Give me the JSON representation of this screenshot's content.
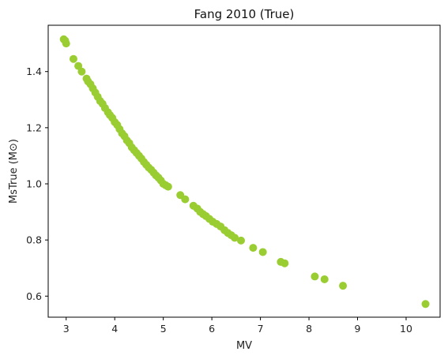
{
  "chart_data": {
    "type": "scatter",
    "title": "Fang 2010 (True)",
    "xlabel": "MV",
    "ylabel": "MsTrue (M⊙)",
    "xlim": [
      2.63,
      10.7
    ],
    "ylim": [
      0.525,
      1.565
    ],
    "xticks": [
      3,
      4,
      5,
      6,
      7,
      8,
      9,
      10
    ],
    "yticks": [
      0.6,
      0.8,
      1.0,
      1.2,
      1.4
    ],
    "ytick_labels": [
      "0.6",
      "0.8",
      "1.0",
      "1.2",
      "1.4"
    ],
    "grid": false,
    "marker_color": "#9acd32",
    "series": [
      {
        "x": [
          2.95,
          2.98,
          3.0,
          3.15,
          3.25,
          3.32,
          3.42,
          3.45,
          3.5,
          3.55,
          3.6,
          3.65,
          3.7,
          3.75,
          3.8,
          3.86,
          3.9,
          3.95,
          4.0,
          4.05,
          4.1,
          4.15,
          4.2,
          4.25,
          4.3,
          4.35,
          4.4,
          4.45,
          4.5,
          4.55,
          4.6,
          4.65,
          4.7,
          4.75,
          4.8,
          4.85,
          4.9,
          4.95,
          5.0,
          5.05,
          5.1,
          5.35,
          5.45,
          5.62,
          5.7,
          5.76,
          5.82,
          5.88,
          5.95,
          6.02,
          6.1,
          6.18,
          6.26,
          6.33,
          6.4,
          6.47,
          6.6,
          6.85,
          7.05,
          7.42,
          7.5,
          8.12,
          8.32,
          8.7,
          10.4
        ],
        "y": [
          1.515,
          1.51,
          1.5,
          1.445,
          1.42,
          1.4,
          1.375,
          1.365,
          1.355,
          1.34,
          1.325,
          1.31,
          1.295,
          1.285,
          1.27,
          1.255,
          1.245,
          1.235,
          1.22,
          1.21,
          1.195,
          1.18,
          1.17,
          1.155,
          1.145,
          1.13,
          1.12,
          1.11,
          1.1,
          1.09,
          1.078,
          1.068,
          1.058,
          1.05,
          1.04,
          1.03,
          1.022,
          1.012,
          1.0,
          0.995,
          0.99,
          0.96,
          0.945,
          0.922,
          0.912,
          0.9,
          0.892,
          0.885,
          0.875,
          0.865,
          0.857,
          0.848,
          0.835,
          0.825,
          0.817,
          0.808,
          0.798,
          0.772,
          0.757,
          0.722,
          0.717,
          0.67,
          0.66,
          0.637,
          0.572
        ]
      }
    ]
  }
}
